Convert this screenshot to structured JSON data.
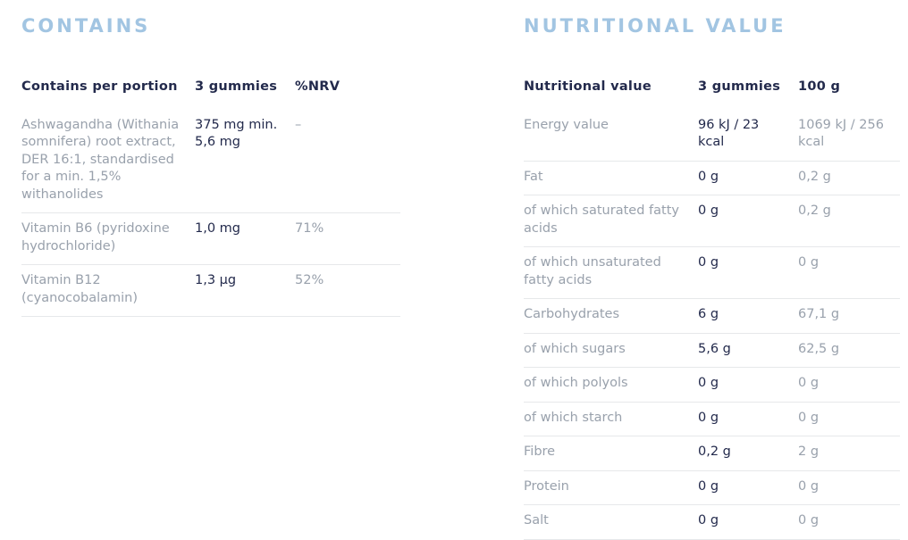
{
  "colors": {
    "heading_blue": "#a2c5e2",
    "dark_navy": "#232a4c",
    "muted_gray": "#99a1ac",
    "divider_gray": "#e6e8ea",
    "background": "#ffffff"
  },
  "contains": {
    "title": "CONTAINS",
    "columns": [
      "Contains per portion",
      "3 gummies",
      "%NRV"
    ],
    "rows": [
      [
        "Ashwagandha (Withania somnifera) root extract, DER 16:1, standardised for a min. 1,5% withanolides",
        "375 mg min. 5,6 mg",
        "–"
      ],
      [
        "Vitamin B6 (pyridoxine hydrochloride)",
        "1,0 mg",
        "71%"
      ],
      [
        "Vitamin B12 (cyanocobalamin)",
        "1,3 µg",
        "52%"
      ]
    ]
  },
  "nutrition": {
    "title": "NUTRITIONAL VALUE",
    "columns": [
      "Nutritional value",
      "3 gummies",
      "100 g"
    ],
    "rows": [
      [
        "Energy value",
        "96 kJ / 23 kcal",
        "1069 kJ / 256 kcal"
      ],
      [
        "Fat",
        "0 g",
        "0,2 g"
      ],
      [
        "of which saturated fatty acids",
        "0 g",
        "0,2 g"
      ],
      [
        "of which unsaturated fatty acids",
        "0 g",
        "0 g"
      ],
      [
        "Carbohydrates",
        "6 g",
        "67,1 g"
      ],
      [
        "of which sugars",
        "5,6 g",
        "62,5 g"
      ],
      [
        "of which polyols",
        "0 g",
        "0 g"
      ],
      [
        "of which starch",
        "0 g",
        "0 g"
      ],
      [
        "Fibre",
        "0,2 g",
        "2 g"
      ],
      [
        "Protein",
        "0 g",
        "0 g"
      ],
      [
        "Salt",
        "0 g",
        "0 g"
      ]
    ]
  }
}
